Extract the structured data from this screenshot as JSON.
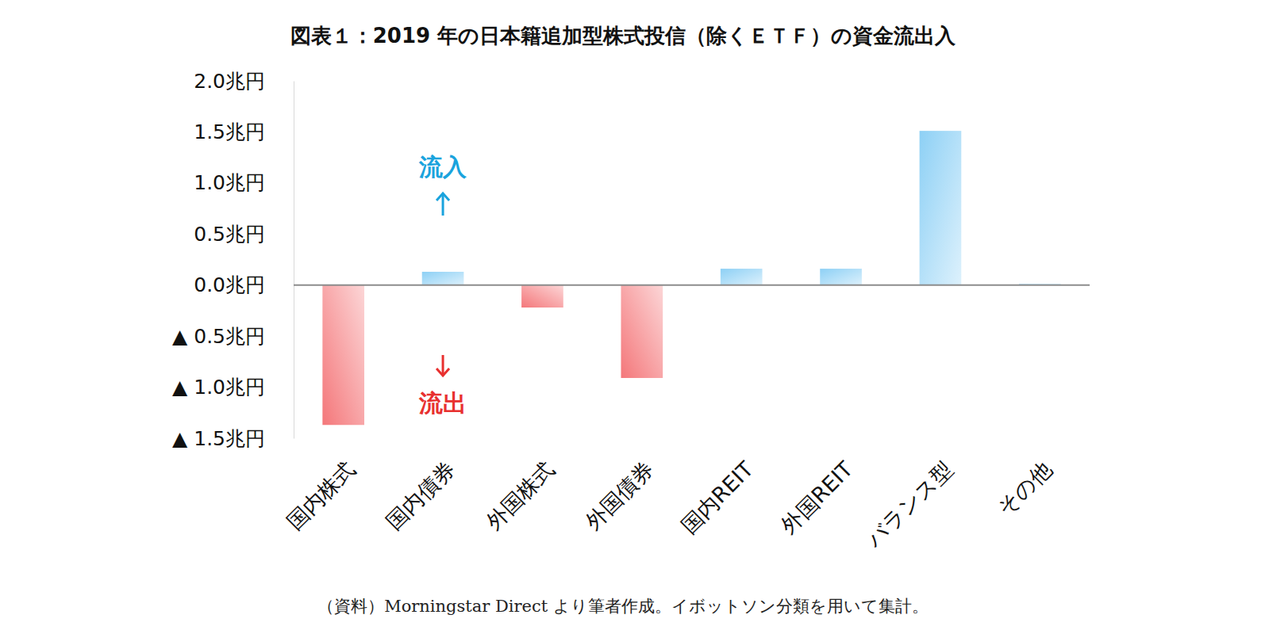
{
  "chart_data": {
    "type": "bar",
    "title": "図表１：2019 年の日本籍追加型株式投信（除くＥＴＦ）の資金流出入",
    "categories": [
      "国内株式",
      "国内債券",
      "外国株式",
      "外国債券",
      "国内REIT",
      "外国REIT",
      "バランス型",
      "その他"
    ],
    "values": [
      -1.37,
      0.13,
      -0.22,
      -0.91,
      0.16,
      0.16,
      1.51,
      0.01
    ],
    "colors": [
      "#f4777a",
      "#8dd0f5",
      "#f4777a",
      "#f4777a",
      "#8dd0f5",
      "#8dd0f5",
      "#8dd0f5",
      "#8dd0f5"
    ],
    "ylim": [
      -1.5,
      2.0
    ],
    "yticks": [
      {
        "value": -1.5,
        "label": "▲ 1.5兆円"
      },
      {
        "value": -1.0,
        "label": "▲ 1.0兆円"
      },
      {
        "value": -0.5,
        "label": "▲ 0.5兆円"
      },
      {
        "value": 0,
        "label": "0.0兆円"
      },
      {
        "value": 0.5,
        "label": "0.5兆円"
      },
      {
        "value": 1.0,
        "label": "1.0兆円"
      },
      {
        "value": 1.5,
        "label": "1.5兆円"
      },
      {
        "value": 2.0,
        "label": "2.0兆円"
      }
    ],
    "grid": false,
    "annotations": [
      "流入",
      "流出"
    ],
    "source": "（資料）Morningstar Direct より筆者作成。イボットソン分類を用いて集計。"
  }
}
